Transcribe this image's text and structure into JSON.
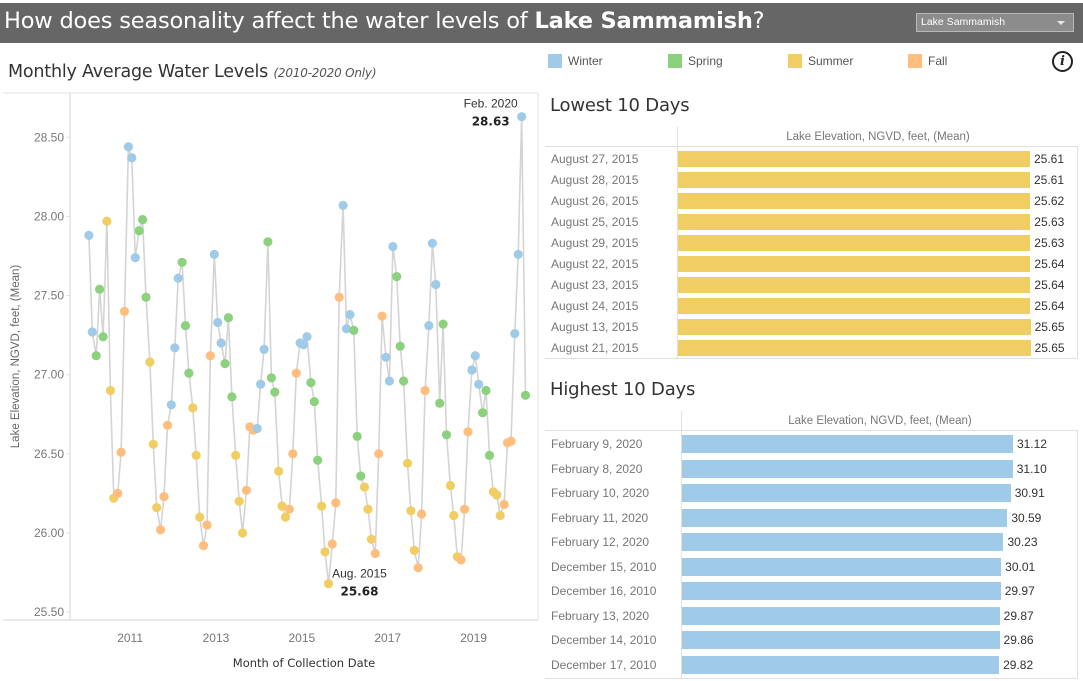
{
  "header": {
    "title_prefix": "How does seasonality affect the water levels of ",
    "title_lake": "Lake Sammamish",
    "title_suffix": "?",
    "dropdown_value": "Lake Sammamish"
  },
  "legend": {
    "items": [
      {
        "label": "Winter",
        "color": "#a0cbe8"
      },
      {
        "label": "Spring",
        "color": "#8cd17d"
      },
      {
        "label": "Summer",
        "color": "#f1ce63"
      },
      {
        "label": "Fall",
        "color": "#ffbe7d"
      }
    ],
    "info_icon": "info-icon"
  },
  "colors": {
    "Winter": "#a0cbe8",
    "Spring": "#8cd17d",
    "Summer": "#f1ce63",
    "Fall": "#ffbe7d",
    "line": "#d4d4d4"
  },
  "chart_title": "Monthly Average Water Levels",
  "chart_subtitle": "(2010-2020 Only)",
  "chart_data": [
    {
      "type": "line",
      "title": "Monthly Average Water Levels (2010-2020 Only)",
      "xlabel": "Month of Collection Date",
      "ylabel": "Lake Elevation, NGVD, feet, (Mean)",
      "ylim": [
        25.45,
        28.78
      ],
      "xlim": [
        2009.6,
        2020.5
      ],
      "yticks": [
        "28.50",
        "28.00",
        "27.50",
        "27.00",
        "26.50",
        "26.00",
        "25.50"
      ],
      "ytick_values": [
        28.5,
        28.0,
        27.5,
        27.0,
        26.5,
        26.0,
        25.5
      ],
      "xticks": [
        "2011",
        "2013",
        "2015",
        "2017",
        "2019"
      ],
      "xtick_values": [
        2011,
        2013,
        2015,
        2017,
        2019
      ],
      "grid": false,
      "legend": "top",
      "annotations": [
        {
          "label": "Feb. 2020",
          "value": "28.63",
          "x": 2020.12,
          "y": 28.63
        },
        {
          "label": "Aug. 2015",
          "value": "25.68",
          "x": 2015.62,
          "y": 25.68
        }
      ],
      "points": [
        {
          "x": 2010.04,
          "y": 27.88,
          "season": "Winter"
        },
        {
          "x": 2010.12,
          "y": 27.27,
          "season": "Winter"
        },
        {
          "x": 2010.21,
          "y": 27.12,
          "season": "Spring"
        },
        {
          "x": 2010.29,
          "y": 27.54,
          "season": "Spring"
        },
        {
          "x": 2010.37,
          "y": 27.24,
          "season": "Spring"
        },
        {
          "x": 2010.46,
          "y": 27.97,
          "season": "Summer"
        },
        {
          "x": 2010.54,
          "y": 26.9,
          "season": "Summer"
        },
        {
          "x": 2010.62,
          "y": 26.22,
          "season": "Summer"
        },
        {
          "x": 2010.71,
          "y": 26.25,
          "season": "Fall"
        },
        {
          "x": 2010.79,
          "y": 26.51,
          "season": "Fall"
        },
        {
          "x": 2010.87,
          "y": 27.4,
          "season": "Fall"
        },
        {
          "x": 2010.96,
          "y": 28.44,
          "season": "Winter"
        },
        {
          "x": 2011.04,
          "y": 28.37,
          "season": "Winter"
        },
        {
          "x": 2011.12,
          "y": 27.74,
          "season": "Winter"
        },
        {
          "x": 2011.21,
          "y": 27.91,
          "season": "Spring"
        },
        {
          "x": 2011.29,
          "y": 27.98,
          "season": "Spring"
        },
        {
          "x": 2011.37,
          "y": 27.49,
          "season": "Spring"
        },
        {
          "x": 2011.46,
          "y": 27.08,
          "season": "Summer"
        },
        {
          "x": 2011.54,
          "y": 26.56,
          "season": "Summer"
        },
        {
          "x": 2011.62,
          "y": 26.16,
          "season": "Summer"
        },
        {
          "x": 2011.71,
          "y": 26.02,
          "season": "Fall"
        },
        {
          "x": 2011.79,
          "y": 26.23,
          "season": "Fall"
        },
        {
          "x": 2011.87,
          "y": 26.68,
          "season": "Fall"
        },
        {
          "x": 2011.96,
          "y": 26.81,
          "season": "Winter"
        },
        {
          "x": 2012.04,
          "y": 27.17,
          "season": "Winter"
        },
        {
          "x": 2012.12,
          "y": 27.61,
          "season": "Winter"
        },
        {
          "x": 2012.21,
          "y": 27.71,
          "season": "Spring"
        },
        {
          "x": 2012.29,
          "y": 27.31,
          "season": "Spring"
        },
        {
          "x": 2012.37,
          "y": 27.01,
          "season": "Spring"
        },
        {
          "x": 2012.46,
          "y": 26.79,
          "season": "Summer"
        },
        {
          "x": 2012.54,
          "y": 26.49,
          "season": "Summer"
        },
        {
          "x": 2012.62,
          "y": 26.1,
          "season": "Summer"
        },
        {
          "x": 2012.71,
          "y": 25.92,
          "season": "Fall"
        },
        {
          "x": 2012.79,
          "y": 26.05,
          "season": "Fall"
        },
        {
          "x": 2012.87,
          "y": 27.12,
          "season": "Fall"
        },
        {
          "x": 2012.96,
          "y": 27.76,
          "season": "Winter"
        },
        {
          "x": 2013.04,
          "y": 27.33,
          "season": "Winter"
        },
        {
          "x": 2013.12,
          "y": 27.2,
          "season": "Winter"
        },
        {
          "x": 2013.21,
          "y": 27.07,
          "season": "Spring"
        },
        {
          "x": 2013.29,
          "y": 27.36,
          "season": "Spring"
        },
        {
          "x": 2013.37,
          "y": 26.86,
          "season": "Spring"
        },
        {
          "x": 2013.46,
          "y": 26.49,
          "season": "Summer"
        },
        {
          "x": 2013.54,
          "y": 26.2,
          "season": "Summer"
        },
        {
          "x": 2013.62,
          "y": 26.0,
          "season": "Summer"
        },
        {
          "x": 2013.71,
          "y": 26.27,
          "season": "Fall"
        },
        {
          "x": 2013.79,
          "y": 26.67,
          "season": "Fall"
        },
        {
          "x": 2013.87,
          "y": 26.65,
          "season": "Fall"
        },
        {
          "x": 2013.96,
          "y": 26.66,
          "season": "Winter"
        },
        {
          "x": 2014.04,
          "y": 26.94,
          "season": "Winter"
        },
        {
          "x": 2014.12,
          "y": 27.16,
          "season": "Winter"
        },
        {
          "x": 2014.21,
          "y": 27.84,
          "season": "Spring"
        },
        {
          "x": 2014.29,
          "y": 26.98,
          "season": "Spring"
        },
        {
          "x": 2014.37,
          "y": 26.89,
          "season": "Spring"
        },
        {
          "x": 2014.46,
          "y": 26.39,
          "season": "Summer"
        },
        {
          "x": 2014.54,
          "y": 26.17,
          "season": "Summer"
        },
        {
          "x": 2014.62,
          "y": 26.1,
          "season": "Summer"
        },
        {
          "x": 2014.71,
          "y": 26.15,
          "season": "Fall"
        },
        {
          "x": 2014.79,
          "y": 26.5,
          "season": "Fall"
        },
        {
          "x": 2014.87,
          "y": 27.01,
          "season": "Fall"
        },
        {
          "x": 2014.96,
          "y": 27.2,
          "season": "Winter"
        },
        {
          "x": 2015.04,
          "y": 27.19,
          "season": "Winter"
        },
        {
          "x": 2015.12,
          "y": 27.24,
          "season": "Winter"
        },
        {
          "x": 2015.21,
          "y": 26.95,
          "season": "Spring"
        },
        {
          "x": 2015.29,
          "y": 26.83,
          "season": "Spring"
        },
        {
          "x": 2015.37,
          "y": 26.46,
          "season": "Spring"
        },
        {
          "x": 2015.46,
          "y": 26.17,
          "season": "Summer"
        },
        {
          "x": 2015.54,
          "y": 25.88,
          "season": "Summer"
        },
        {
          "x": 2015.62,
          "y": 25.68,
          "season": "Summer"
        },
        {
          "x": 2015.71,
          "y": 25.93,
          "season": "Fall"
        },
        {
          "x": 2015.79,
          "y": 26.19,
          "season": "Fall"
        },
        {
          "x": 2015.87,
          "y": 27.49,
          "season": "Fall"
        },
        {
          "x": 2015.96,
          "y": 28.07,
          "season": "Winter"
        },
        {
          "x": 2016.04,
          "y": 27.29,
          "season": "Winter"
        },
        {
          "x": 2016.12,
          "y": 27.38,
          "season": "Winter"
        },
        {
          "x": 2016.21,
          "y": 27.28,
          "season": "Spring"
        },
        {
          "x": 2016.29,
          "y": 26.61,
          "season": "Spring"
        },
        {
          "x": 2016.37,
          "y": 26.36,
          "season": "Spring"
        },
        {
          "x": 2016.46,
          "y": 26.29,
          "season": "Summer"
        },
        {
          "x": 2016.54,
          "y": 26.15,
          "season": "Summer"
        },
        {
          "x": 2016.62,
          "y": 25.96,
          "season": "Summer"
        },
        {
          "x": 2016.71,
          "y": 25.87,
          "season": "Fall"
        },
        {
          "x": 2016.79,
          "y": 26.5,
          "season": "Fall"
        },
        {
          "x": 2016.87,
          "y": 27.37,
          "season": "Fall"
        },
        {
          "x": 2016.96,
          "y": 27.11,
          "season": "Winter"
        },
        {
          "x": 2017.04,
          "y": 26.96,
          "season": "Winter"
        },
        {
          "x": 2017.12,
          "y": 27.81,
          "season": "Winter"
        },
        {
          "x": 2017.21,
          "y": 27.62,
          "season": "Spring"
        },
        {
          "x": 2017.29,
          "y": 27.18,
          "season": "Spring"
        },
        {
          "x": 2017.37,
          "y": 26.96,
          "season": "Spring"
        },
        {
          "x": 2017.46,
          "y": 26.44,
          "season": "Summer"
        },
        {
          "x": 2017.54,
          "y": 26.14,
          "season": "Summer"
        },
        {
          "x": 2017.62,
          "y": 25.89,
          "season": "Summer"
        },
        {
          "x": 2017.71,
          "y": 25.78,
          "season": "Fall"
        },
        {
          "x": 2017.79,
          "y": 26.12,
          "season": "Fall"
        },
        {
          "x": 2017.87,
          "y": 26.9,
          "season": "Fall"
        },
        {
          "x": 2017.96,
          "y": 27.31,
          "season": "Winter"
        },
        {
          "x": 2018.04,
          "y": 27.83,
          "season": "Winter"
        },
        {
          "x": 2018.12,
          "y": 27.57,
          "season": "Winter"
        },
        {
          "x": 2018.21,
          "y": 26.82,
          "season": "Spring"
        },
        {
          "x": 2018.29,
          "y": 27.32,
          "season": "Spring"
        },
        {
          "x": 2018.37,
          "y": 26.62,
          "season": "Spring"
        },
        {
          "x": 2018.46,
          "y": 26.3,
          "season": "Summer"
        },
        {
          "x": 2018.54,
          "y": 26.11,
          "season": "Summer"
        },
        {
          "x": 2018.62,
          "y": 25.85,
          "season": "Summer"
        },
        {
          "x": 2018.71,
          "y": 25.83,
          "season": "Fall"
        },
        {
          "x": 2018.79,
          "y": 26.15,
          "season": "Fall"
        },
        {
          "x": 2018.87,
          "y": 26.64,
          "season": "Fall"
        },
        {
          "x": 2018.96,
          "y": 27.03,
          "season": "Winter"
        },
        {
          "x": 2019.04,
          "y": 27.12,
          "season": "Winter"
        },
        {
          "x": 2019.12,
          "y": 26.94,
          "season": "Winter"
        },
        {
          "x": 2019.21,
          "y": 26.76,
          "season": "Spring"
        },
        {
          "x": 2019.29,
          "y": 26.9,
          "season": "Spring"
        },
        {
          "x": 2019.37,
          "y": 26.49,
          "season": "Spring"
        },
        {
          "x": 2019.46,
          "y": 26.26,
          "season": "Summer"
        },
        {
          "x": 2019.54,
          "y": 26.24,
          "season": "Summer"
        },
        {
          "x": 2019.62,
          "y": 26.11,
          "season": "Summer"
        },
        {
          "x": 2019.71,
          "y": 26.18,
          "season": "Fall"
        },
        {
          "x": 2019.79,
          "y": 26.57,
          "season": "Fall"
        },
        {
          "x": 2019.87,
          "y": 26.58,
          "season": "Fall"
        },
        {
          "x": 2019.96,
          "y": 27.26,
          "season": "Winter"
        },
        {
          "x": 2020.04,
          "y": 27.76,
          "season": "Winter"
        },
        {
          "x": 2020.12,
          "y": 28.63,
          "season": "Winter"
        },
        {
          "x": 2020.21,
          "y": 26.87,
          "season": "Spring"
        }
      ]
    },
    {
      "type": "bar",
      "title": "Lowest 10 Days",
      "column_header": "Lake Elevation, NGVD, feet, (Mean)",
      "color": "#f1ce63",
      "categories": [
        "August 27, 2015",
        "August 28, 2015",
        "August 26, 2015",
        "August 25, 2015",
        "August 29, 2015",
        "August 22, 2015",
        "August 23, 2015",
        "August 24, 2015",
        "August 13, 2015",
        "August 21, 2015"
      ],
      "values": [
        25.61,
        25.61,
        25.62,
        25.63,
        25.63,
        25.64,
        25.64,
        25.64,
        25.65,
        25.65
      ],
      "labels": [
        "25.61",
        "25.61",
        "25.62",
        "25.63",
        "25.63",
        "25.64",
        "25.64",
        "25.64",
        "25.65",
        "25.65"
      ],
      "xlim": [
        0,
        25.9
      ]
    },
    {
      "type": "bar",
      "title": "Highest 10 Days",
      "column_header": "Lake Elevation, NGVD, feet, (Mean)",
      "color": "#a0cbe8",
      "categories": [
        "February 9, 2020",
        "February 8, 2020",
        "February 10, 2020",
        "February 11, 2020",
        "February 12, 2020",
        "December 15, 2010",
        "December 16, 2010",
        "February 13, 2020",
        "December 14, 2010",
        "December 17, 2010"
      ],
      "values": [
        31.12,
        31.1,
        30.91,
        30.59,
        30.23,
        30.01,
        29.97,
        29.87,
        29.86,
        29.82
      ],
      "labels": [
        "31.12",
        "31.10",
        "30.91",
        "30.59",
        "30.23",
        "30.01",
        "29.97",
        "29.87",
        "29.86",
        "29.82"
      ],
      "xlim": [
        0,
        31.5
      ]
    }
  ]
}
